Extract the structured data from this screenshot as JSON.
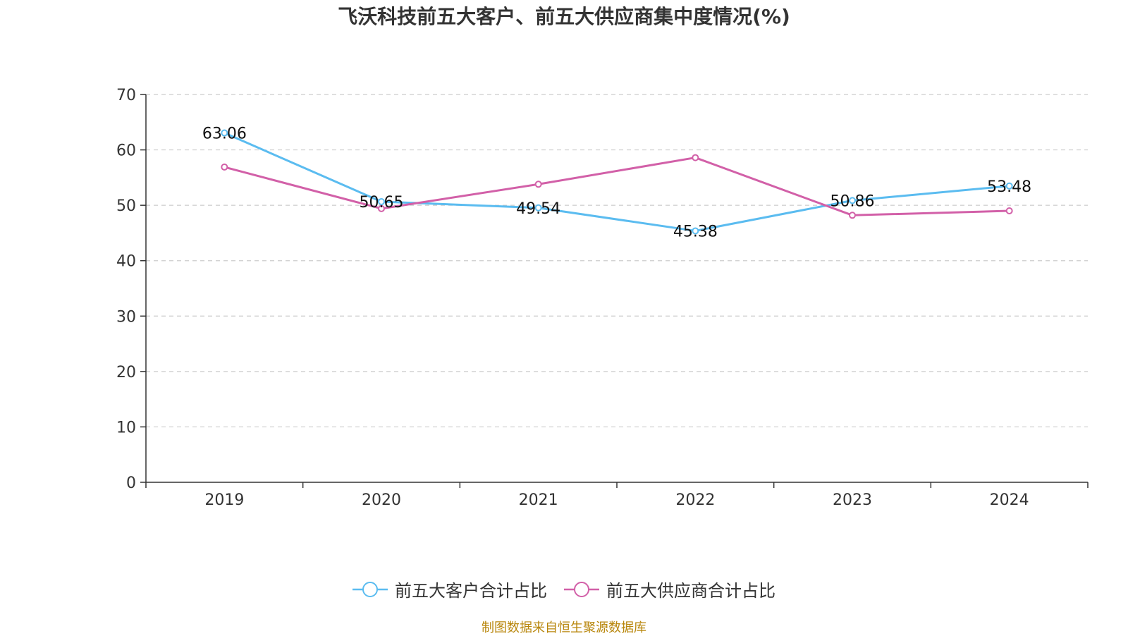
{
  "colors": {
    "series_customers": "#5bbcf0",
    "series_suppliers": "#d260a8",
    "axis": "#333333",
    "grid": "#cccccc",
    "text": "#333333",
    "source": "#b8860b"
  },
  "chart_data": {
    "type": "line",
    "title": "飞沃科技前五大客户、前五大供应商集中度情况(%)",
    "xlabel": "",
    "ylabel": "",
    "categories": [
      "2019",
      "2020",
      "2021",
      "2022",
      "2023",
      "2024"
    ],
    "ylim": [
      0,
      70
    ],
    "yticks": [
      "0",
      "10",
      "20",
      "30",
      "40",
      "50",
      "60",
      "70"
    ],
    "grid": true,
    "legend_position": "bottom-center",
    "series": [
      {
        "name": "前五大客户合计占比",
        "values": [
          63.06,
          50.65,
          49.54,
          45.38,
          50.86,
          53.48
        ],
        "labels": [
          "63.06",
          "50.65",
          "49.54",
          "45.38",
          "50.86",
          "53.48"
        ],
        "show_labels": true
      },
      {
        "name": "前五大供应商合计占比",
        "values": [
          56.9,
          49.4,
          53.8,
          58.6,
          48.2,
          49.0
        ],
        "show_labels": false
      }
    ],
    "source": "制图数据来自恒生聚源数据库"
  }
}
